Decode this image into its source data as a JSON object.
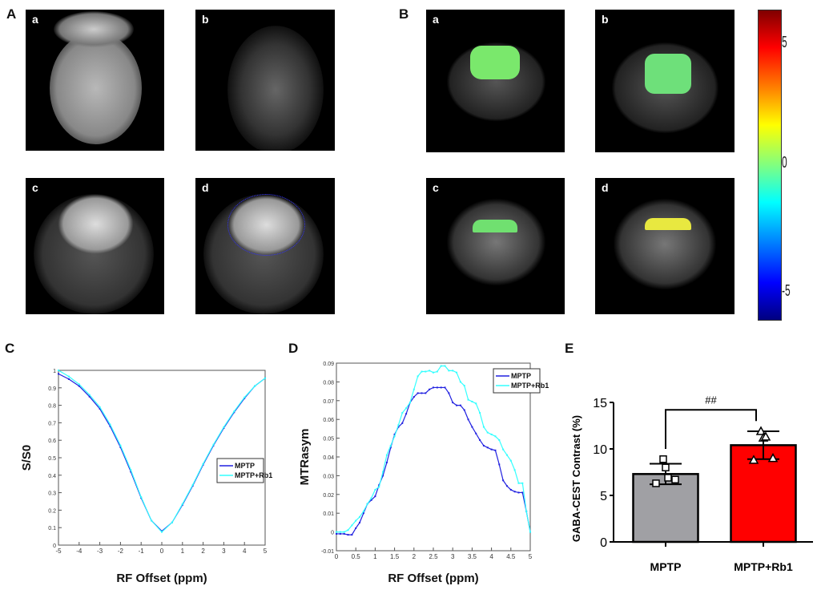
{
  "panels": {
    "A": "A",
    "B": "B",
    "C": "C",
    "D": "D",
    "E": "E"
  },
  "panelA": {
    "sublabels": [
      "a",
      "b",
      "c",
      "d"
    ]
  },
  "panelB": {
    "sublabels": [
      "a",
      "b",
      "c",
      "d"
    ],
    "colorbar": {
      "ticks": [
        "5",
        "0",
        "-5"
      ],
      "range": [
        -6,
        6
      ],
      "colormap": "jet"
    }
  },
  "chart_data": [
    {
      "id": "C",
      "type": "line",
      "xlabel": "RF Offset (ppm)",
      "ylabel": "S/S0",
      "xlim": [
        -5,
        5
      ],
      "ylim": [
        0,
        1
      ],
      "xticks": [
        "-5",
        "-4",
        "-3",
        "-2",
        "-1",
        "0",
        "1",
        "2",
        "3",
        "4",
        "5"
      ],
      "yticks": [
        "0",
        "0.1",
        "0.2",
        "0.3",
        "0.4",
        "0.5",
        "0.6",
        "0.7",
        "0.8",
        "0.9",
        "1"
      ],
      "legend": "right",
      "x": [
        -5,
        -4.5,
        -4,
        -3.5,
        -3,
        -2.5,
        -2,
        -1.5,
        -1,
        -0.5,
        0,
        0.5,
        1,
        1.5,
        2,
        2.5,
        3,
        3.5,
        4,
        4.5,
        5
      ],
      "series": [
        {
          "name": "MPTP",
          "color": "#2020e0",
          "values": [
            0.98,
            0.95,
            0.91,
            0.85,
            0.78,
            0.68,
            0.56,
            0.42,
            0.27,
            0.14,
            0.08,
            0.13,
            0.23,
            0.34,
            0.46,
            0.57,
            0.67,
            0.76,
            0.84,
            0.91,
            0.955
          ]
        },
        {
          "name": "MPTP+Rb1",
          "color": "#33ffff",
          "values": [
            1.0,
            0.965,
            0.92,
            0.86,
            0.79,
            0.69,
            0.57,
            0.43,
            0.275,
            0.14,
            0.075,
            0.13,
            0.235,
            0.345,
            0.465,
            0.575,
            0.675,
            0.765,
            0.845,
            0.91,
            0.955
          ]
        }
      ]
    },
    {
      "id": "D",
      "type": "line",
      "xlabel": "RF Offset (ppm)",
      "ylabel": "MTRasym",
      "xlim": [
        0,
        5
      ],
      "ylim": [
        -0.01,
        0.09
      ],
      "xticks": [
        "0",
        "0.5",
        "1",
        "1.5",
        "2",
        "2.5",
        "3",
        "3.5",
        "4",
        "4.5",
        "5"
      ],
      "yticks": [
        "-0.01",
        "0",
        "0.01",
        "0.02",
        "0.03",
        "0.04",
        "0.05",
        "0.06",
        "0.07",
        "0.08",
        "0.09"
      ],
      "legend": "top-right",
      "x": [
        0,
        0.1,
        0.2,
        0.3,
        0.4,
        0.5,
        0.6,
        0.7,
        0.8,
        0.9,
        1.0,
        1.1,
        1.2,
        1.3,
        1.4,
        1.5,
        1.6,
        1.7,
        1.8,
        1.9,
        2.0,
        2.1,
        2.2,
        2.3,
        2.4,
        2.5,
        2.6,
        2.7,
        2.8,
        2.9,
        3.0,
        3.1,
        3.2,
        3.3,
        3.4,
        3.5,
        3.6,
        3.7,
        3.8,
        3.9,
        4.0,
        4.1,
        4.2,
        4.3,
        4.4,
        4.5,
        4.6,
        4.7,
        4.8,
        4.9,
        5.0
      ],
      "series": [
        {
          "name": "MPTP",
          "color": "#2020e0",
          "values": [
            -0.001,
            -0.001,
            -0.001,
            -0.0015,
            -0.0015,
            0.002,
            0.005,
            0.01,
            0.015,
            0.017,
            0.019,
            0.025,
            0.03,
            0.037,
            0.045,
            0.052,
            0.056,
            0.058,
            0.063,
            0.069,
            0.072,
            0.074,
            0.074,
            0.074,
            0.076,
            0.077,
            0.077,
            0.077,
            0.077,
            0.074,
            0.069,
            0.0675,
            0.0675,
            0.065,
            0.06,
            0.056,
            0.0525,
            0.049,
            0.046,
            0.045,
            0.044,
            0.0435,
            0.036,
            0.0275,
            0.0245,
            0.0225,
            0.0215,
            0.021,
            0.021,
            0.011,
            0
          ]
        },
        {
          "name": "MPTP+Rb1",
          "color": "#33ffff",
          "values": [
            0,
            0,
            0,
            0.001,
            0.0035,
            0.006,
            0.008,
            0.011,
            0.015,
            0.018,
            0.0225,
            0.024,
            0.032,
            0.041,
            0.046,
            0.051,
            0.057,
            0.0635,
            0.066,
            0.069,
            0.076,
            0.083,
            0.0855,
            0.0855,
            0.086,
            0.085,
            0.0855,
            0.0885,
            0.0885,
            0.086,
            0.086,
            0.085,
            0.08,
            0.078,
            0.0705,
            0.0695,
            0.0685,
            0.0635,
            0.056,
            0.053,
            0.052,
            0.051,
            0.049,
            0.044,
            0.041,
            0.038,
            0.033,
            0.026,
            0.026,
            0.011,
            0
          ]
        }
      ]
    },
    {
      "id": "E",
      "type": "bar",
      "ylabel": "GABA-CEST Contrast (%)",
      "ylim": [
        0,
        15
      ],
      "yticks": [
        "0",
        "5",
        "10",
        "15"
      ],
      "categories": [
        "MPTP",
        "MPTP+Rb1"
      ],
      "values": [
        7.3,
        10.4
      ],
      "sd": [
        1.1,
        1.5
      ],
      "colors": [
        "#a0a0a4",
        "#ff0000"
      ],
      "points": [
        [
          8.9,
          8.0,
          6.9,
          6.3,
          6.7
        ],
        [
          11.9,
          11.2,
          11.3,
          8.8,
          9.0
        ]
      ],
      "markers": [
        "square",
        "triangle"
      ],
      "significance": "##"
    }
  ]
}
